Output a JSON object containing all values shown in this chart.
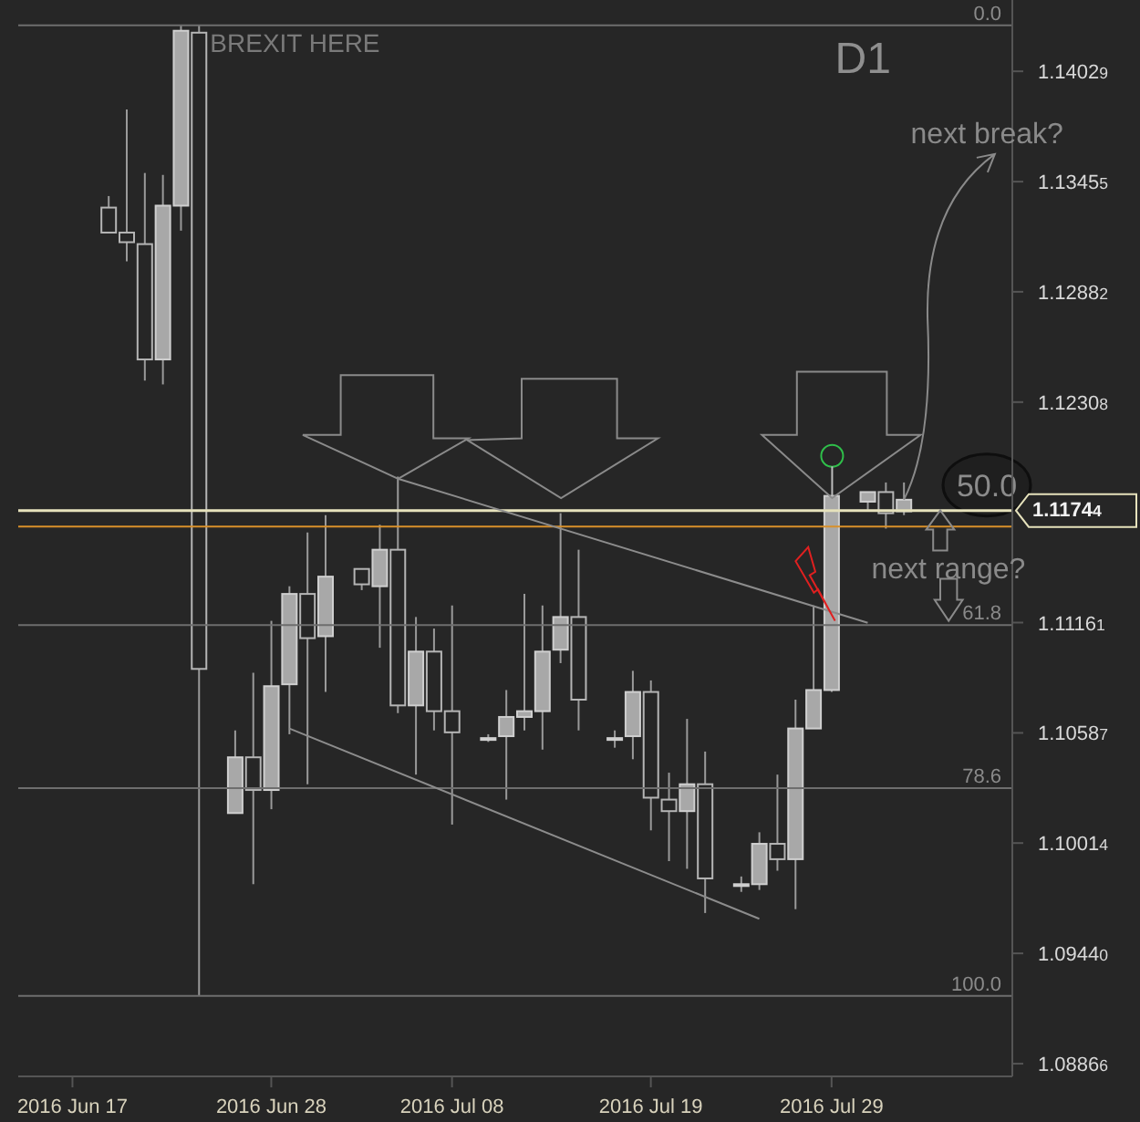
{
  "chart_data": {
    "type": "candlestick",
    "x": [
      "2016-06-19",
      "2016-06-20",
      "2016-06-21",
      "2016-06-22",
      "2016-06-23",
      "2016-06-24",
      "2016-06-26",
      "2016-06-27",
      "2016-06-28",
      "2016-06-29",
      "2016-06-30",
      "2016-07-01",
      "2016-07-03",
      "2016-07-04",
      "2016-07-05",
      "2016-07-06",
      "2016-07-07",
      "2016-07-08",
      "2016-07-10",
      "2016-07-11",
      "2016-07-12",
      "2016-07-13",
      "2016-07-14",
      "2016-07-15",
      "2016-07-17",
      "2016-07-18",
      "2016-07-19",
      "2016-07-20",
      "2016-07-21",
      "2016-07-22",
      "2016-07-24",
      "2016-07-25",
      "2016-07-26",
      "2016-07-27",
      "2016-07-28",
      "2016-07-29",
      "2016-07-31",
      "2016-08-01",
      "2016-08-02"
    ],
    "ohlc": [
      [
        1.1332,
        1.1338,
        1.1319,
        1.1319
      ],
      [
        1.1319,
        1.1383,
        1.1304,
        1.1314
      ],
      [
        1.1313,
        1.135,
        1.1242,
        1.1253
      ],
      [
        1.1253,
        1.1349,
        1.124,
        1.1333
      ],
      [
        1.1333,
        1.1427,
        1.132,
        1.1424
      ],
      [
        1.1423,
        1.1427,
        1.0922,
        1.1092
      ],
      [
        1.1017,
        1.106,
        1.1017,
        1.1046
      ],
      [
        1.1046,
        1.109,
        1.098,
        1.1029
      ],
      [
        1.1029,
        1.1117,
        1.1019,
        1.1083
      ],
      [
        1.1084,
        1.1135,
        1.1058,
        1.1131
      ],
      [
        1.1131,
        1.1163,
        1.1032,
        1.1108
      ],
      [
        1.1109,
        1.1172,
        1.108,
        1.114
      ],
      [
        1.1144,
        1.1144,
        1.1133,
        1.1136
      ],
      [
        1.1135,
        1.1167,
        1.1103,
        1.1154
      ],
      [
        1.1154,
        1.1192,
        1.1069,
        1.1073
      ],
      [
        1.1073,
        1.1119,
        1.1037,
        1.1101
      ],
      [
        1.1101,
        1.1113,
        1.106,
        1.107
      ],
      [
        1.107,
        1.1125,
        1.1011,
        1.1059
      ],
      [
        1.1056,
        1.1058,
        1.1054,
        1.1056
      ],
      [
        1.1057,
        1.1081,
        1.1024,
        1.1067
      ],
      [
        1.1067,
        1.1131,
        1.106,
        1.107
      ],
      [
        1.107,
        1.1125,
        1.105,
        1.1101
      ],
      [
        1.1102,
        1.1173,
        1.1095,
        1.1119
      ],
      [
        1.1119,
        1.1154,
        1.106,
        1.1076
      ],
      [
        1.1056,
        1.106,
        1.1051,
        1.1056
      ],
      [
        1.1057,
        1.1091,
        1.1045,
        1.108
      ],
      [
        1.108,
        1.1086,
        1.1008,
        1.1025
      ],
      [
        1.1024,
        1.1038,
        1.0992,
        1.1018
      ],
      [
        1.1018,
        1.1066,
        1.0988,
        1.1032
      ],
      [
        1.1032,
        1.1049,
        1.0965,
        1.0983
      ],
      [
        1.098,
        1.0984,
        1.0976,
        1.098
      ],
      [
        1.098,
        1.1007,
        1.0977,
        1.1001
      ],
      [
        1.1001,
        1.1037,
        1.0987,
        1.0993
      ],
      [
        1.0993,
        1.1076,
        1.0967,
        1.1061
      ],
      [
        1.1061,
        1.1125,
        1.1061,
        1.1081
      ],
      [
        1.1081,
        1.1182,
        1.108,
        1.1182
      ],
      [
        1.1179,
        1.1184,
        1.1174,
        1.1184
      ],
      [
        1.1184,
        1.1189,
        1.1165,
        1.1173
      ],
      [
        1.1174,
        1.1189,
        1.1172,
        1.118
      ]
    ],
    "series": [
      {
        "type": "line",
        "color": "#8c8c8c",
        "x": [
          "2016-07-05",
          "2016-07-31"
        ],
        "values": [
          1.1191,
          1.1116
        ]
      },
      {
        "type": "line",
        "color": "#8c8c8c",
        "x": [
          "2016-06-29",
          "2016-07-25"
        ],
        "values": [
          1.1061,
          1.0962
        ]
      }
    ],
    "xlim": [
      "2016-06-14",
      "2016-08-08"
    ],
    "xticks": [
      {
        "value": "2016-06-17",
        "label": "2016 Jun 17"
      },
      {
        "value": "2016-06-28",
        "label": "2016 Jun 28"
      },
      {
        "value": "2016-07-08",
        "label": "2016 Jul 08"
      },
      {
        "value": "2016-07-19",
        "label": "2016 Jul 19"
      },
      {
        "value": "2016-07-29",
        "label": "2016 Jul 29"
      }
    ],
    "ylim": [
      1.088,
      1.144
    ],
    "yticks": [
      {
        "value": 1.08866,
        "label": "1.08866"
      },
      {
        "value": 1.0944,
        "label": "1.09440"
      },
      {
        "value": 1.10014,
        "label": "1.10014"
      },
      {
        "value": 1.10587,
        "label": "1.10587"
      },
      {
        "value": 1.11161,
        "label": "1.11161"
      },
      {
        "value": 1.12308,
        "label": "1.12308"
      },
      {
        "value": 1.12882,
        "label": "1.12882"
      },
      {
        "value": 1.13455,
        "label": "1.13455"
      },
      {
        "value": 1.14029,
        "label": "1.14029"
      }
    ],
    "y2lim": [
      108.3,
      -2.6
    ],
    "ref_lines": [
      {
        "axis": "y2",
        "value": 0,
        "label": "0.0",
        "color": "#6e6e6e"
      },
      {
        "axis": "y2",
        "value": 50,
        "label": "50.0",
        "color": "#6e6e6e"
      },
      {
        "axis": "y2",
        "value": 61.8,
        "label": "61.8",
        "color": "#6e6e6e"
      },
      {
        "axis": "y2",
        "value": 78.6,
        "label": "78.6",
        "color": "#6e6e6e"
      },
      {
        "axis": "y2",
        "value": 100,
        "label": "100.0",
        "color": "#6e6e6e"
      },
      {
        "axis": "y",
        "value": 1.11744,
        "label": "1.11744",
        "color": "#e6e2bc"
      },
      {
        "axis": "y",
        "value": 1.1166,
        "color": "#d9902a"
      }
    ],
    "annotations": [
      "BREXIT HERE",
      "D1",
      {
        "text": "next break?",
        "x": "2016-08-02",
        "y": 1.118
      },
      "next range?"
    ]
  }
}
